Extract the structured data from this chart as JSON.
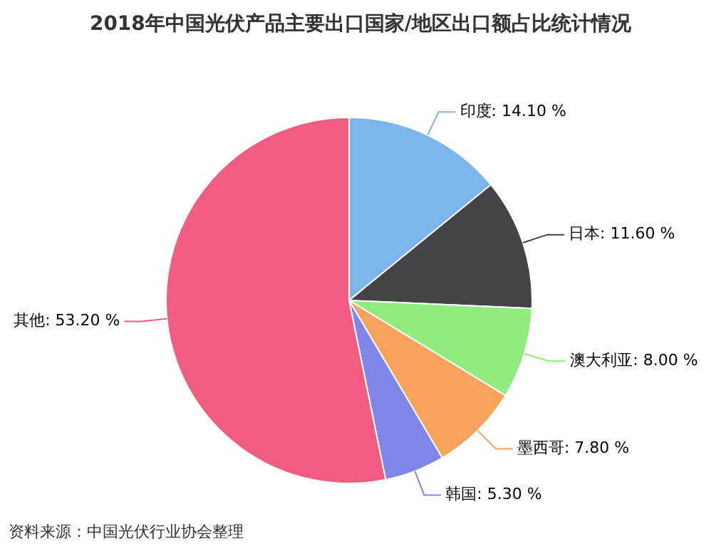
{
  "chart_data": {
    "type": "pie",
    "title": "2018年中国光伏产品主要出口国家/地区出口额占比统计情况",
    "categories": [
      "印度",
      "日本",
      "澳大利亚",
      "墨西哥",
      "韩国",
      "其他"
    ],
    "values": [
      14.1,
      11.6,
      8.0,
      7.8,
      5.3,
      53.2
    ],
    "value_labels": [
      "14.10 %",
      "11.60 %",
      "8.00 %",
      "7.80 %",
      "5.30 %",
      "53.20 %"
    ],
    "colors": [
      "#7cb5ec",
      "#434348",
      "#90ed7d",
      "#f7a35c",
      "#8085e9",
      "#f15c80"
    ],
    "legend": false,
    "annotations": [
      "资料来源：中国光伏行业协会整理"
    ]
  }
}
